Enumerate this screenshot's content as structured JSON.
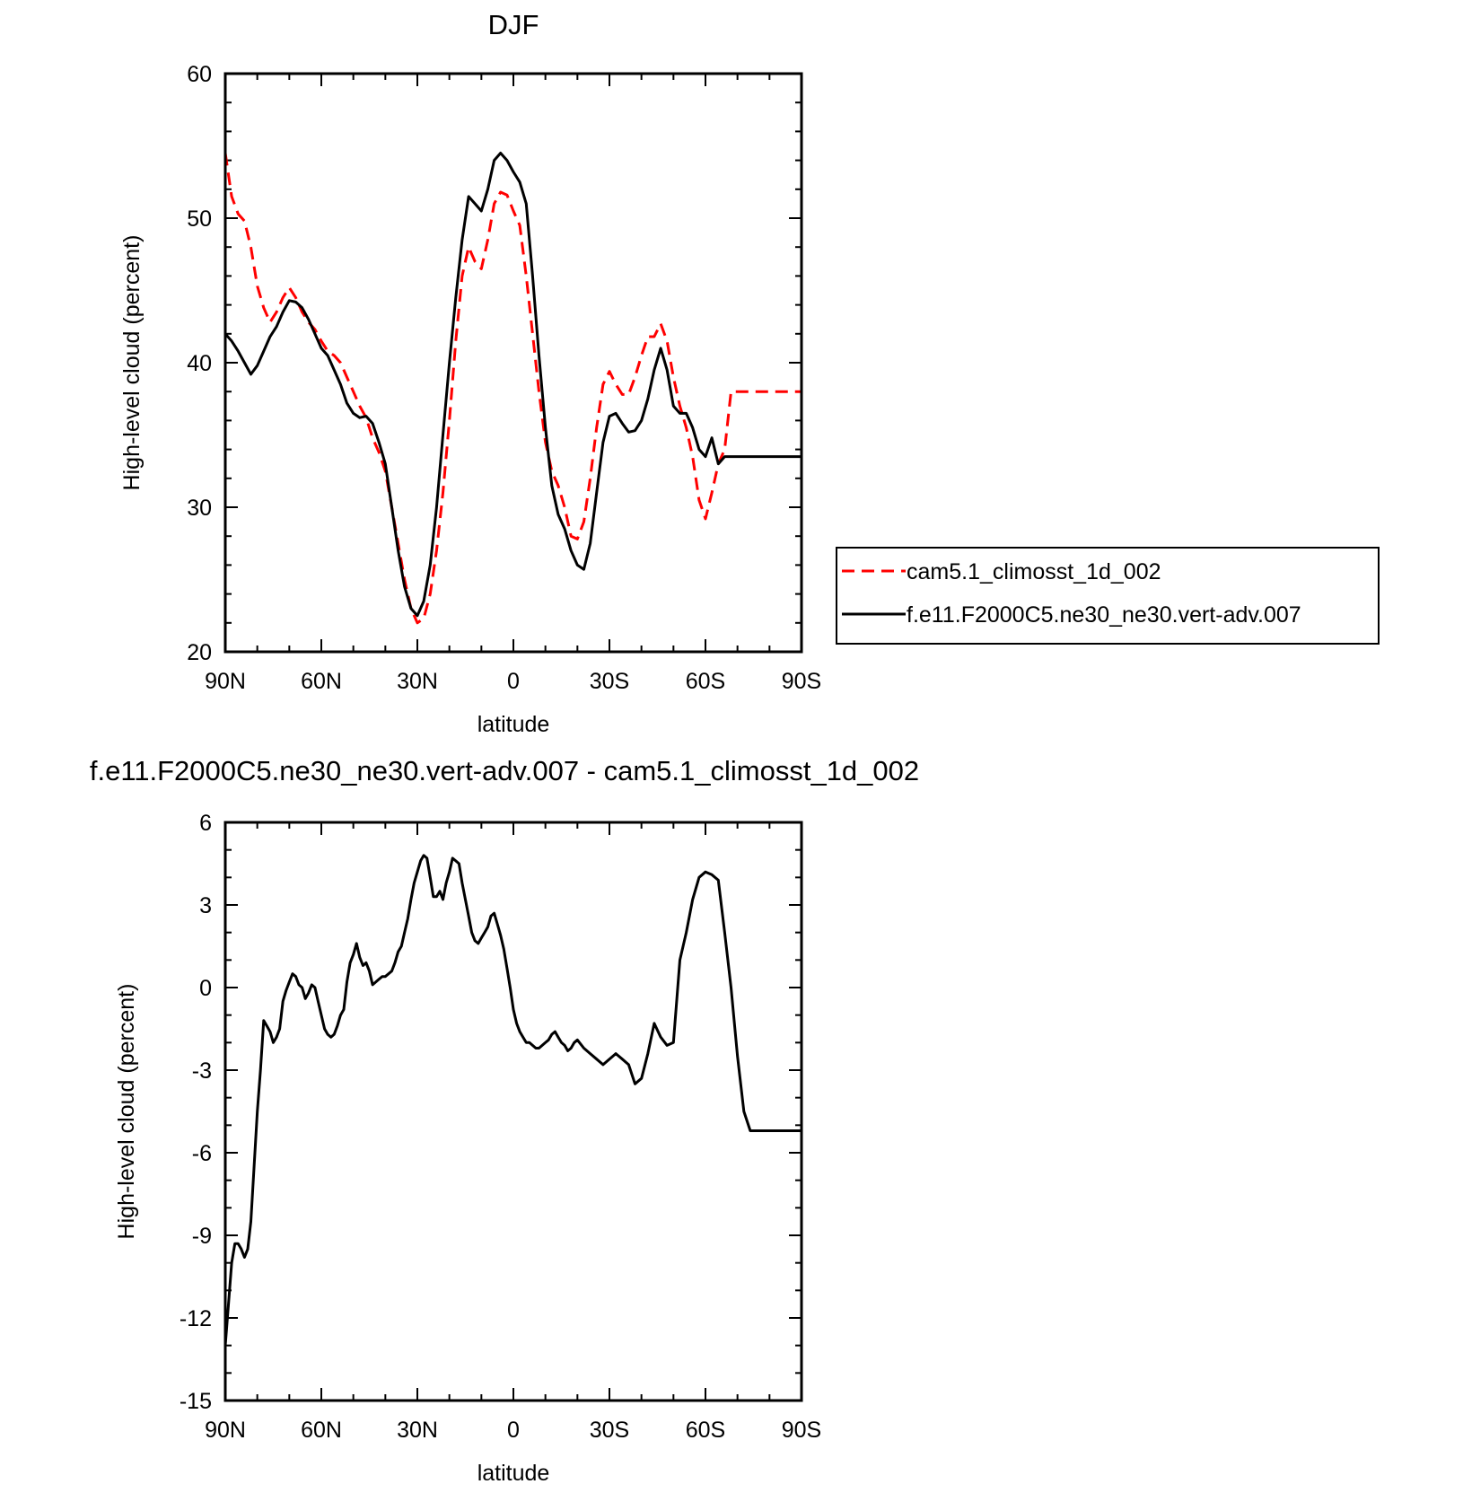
{
  "chart_data": [
    {
      "type": "line",
      "title": "DJF",
      "xlabel": "latitude",
      "ylabel": "High-level cloud (percent)",
      "xlim": [
        90,
        -90
      ],
      "ylim": [
        20,
        60
      ],
      "x_tick_values": [
        90,
        60,
        30,
        0,
        -30,
        -60,
        -90
      ],
      "x_tick_labels": [
        "90N",
        "60N",
        "30N",
        "0",
        "30S",
        "60S",
        "90S"
      ],
      "y_tick_values": [
        20,
        30,
        40,
        50,
        60
      ],
      "y_tick_labels": [
        "20",
        "30",
        "40",
        "50",
        "60"
      ],
      "legend_position": "right",
      "series": [
        {
          "name": "cam5.1_climosst_1d_002",
          "color": "#ff0000",
          "dash": "dashed",
          "x": [
            90,
            88,
            86,
            84,
            82,
            80,
            78,
            76,
            74,
            72,
            70,
            68,
            66,
            64,
            62,
            60,
            58,
            56,
            54,
            52,
            50,
            48,
            46,
            44,
            42,
            40,
            38,
            36,
            34,
            32,
            30,
            28,
            26,
            24,
            22,
            20,
            18,
            16,
            14,
            12,
            10,
            8,
            6,
            4,
            2,
            0,
            -2,
            -4,
            -6,
            -8,
            -10,
            -12,
            -14,
            -16,
            -18,
            -20,
            -22,
            -24,
            -26,
            -28,
            -30,
            -32,
            -34,
            -36,
            -38,
            -40,
            -42,
            -44,
            -46,
            -48,
            -50,
            -52,
            -54,
            -56,
            -58,
            -60,
            -62,
            -64,
            -66,
            -68,
            -70,
            -72,
            -74,
            -76,
            -78,
            -80,
            -82,
            -84,
            -86,
            -88,
            -90
          ],
          "values": [
            54.5,
            51.5,
            50.3,
            49.8,
            48.0,
            45.3,
            43.8,
            42.8,
            43.5,
            44.5,
            45.2,
            44.5,
            43.5,
            42.8,
            42.3,
            41.5,
            40.8,
            40.5,
            40.0,
            39.0,
            38.0,
            37.0,
            36.2,
            34.8,
            33.8,
            32.5,
            30.0,
            27.5,
            25.0,
            23.0,
            22.0,
            22.3,
            24.0,
            27.0,
            31.0,
            36.0,
            41.5,
            46.0,
            48.0,
            47.0,
            46.5,
            48.5,
            51.0,
            51.8,
            51.6,
            50.5,
            49.5,
            46.0,
            42.0,
            38.0,
            34.5,
            32.5,
            31.5,
            30.0,
            28.0,
            27.8,
            29.0,
            32.0,
            35.5,
            38.5,
            39.4,
            38.5,
            37.8,
            37.8,
            39.0,
            40.5,
            41.8,
            41.8,
            42.7,
            41.5,
            39.0,
            37.0,
            35.5,
            33.5,
            30.5,
            29.2,
            31.0,
            33.0,
            34.0,
            38.0,
            38.0,
            38.0,
            38.0,
            38.0,
            38.0,
            38.0,
            38.0,
            38.0,
            38.0,
            38.0,
            38.0
          ]
        },
        {
          "name": "f.e11.F2000C5.ne30_ne30.vert-adv.007",
          "color": "#000000",
          "dash": "solid",
          "x": [
            90,
            88,
            86,
            84,
            82,
            80,
            78,
            76,
            74,
            72,
            70,
            68,
            66,
            64,
            62,
            60,
            58,
            56,
            54,
            52,
            50,
            48,
            46,
            44,
            42,
            40,
            38,
            36,
            34,
            32,
            30,
            28,
            26,
            24,
            22,
            20,
            18,
            16,
            14,
            12,
            10,
            8,
            6,
            4,
            2,
            0,
            -2,
            -4,
            -6,
            -8,
            -10,
            -12,
            -14,
            -16,
            -18,
            -20,
            -22,
            -24,
            -26,
            -28,
            -30,
            -32,
            -34,
            -36,
            -38,
            -40,
            -42,
            -44,
            -46,
            -48,
            -50,
            -52,
            -54,
            -56,
            -58,
            -60,
            -62,
            -64,
            -66,
            -68,
            -70,
            -72,
            -74,
            -76,
            -78,
            -80,
            -82,
            -84,
            -86,
            -88,
            -90
          ],
          "values": [
            42.0,
            41.5,
            40.8,
            40.0,
            39.2,
            39.8,
            40.8,
            41.8,
            42.5,
            43.5,
            44.3,
            44.2,
            43.8,
            43.0,
            42.0,
            41.0,
            40.5,
            39.5,
            38.5,
            37.2,
            36.5,
            36.2,
            36.3,
            35.8,
            34.5,
            33.0,
            30.0,
            27.0,
            24.5,
            23.0,
            22.5,
            23.5,
            26.0,
            30.0,
            35.0,
            40.0,
            44.5,
            48.5,
            51.5,
            51.0,
            50.5,
            52.0,
            54.0,
            54.5,
            54.0,
            53.2,
            52.5,
            51.0,
            46.0,
            40.5,
            35.5,
            31.5,
            29.5,
            28.5,
            27.0,
            26.0,
            25.7,
            27.5,
            31.0,
            34.5,
            36.3,
            36.5,
            35.8,
            35.2,
            35.3,
            36.0,
            37.5,
            39.5,
            41.0,
            39.5,
            37.0,
            36.5,
            36.5,
            35.5,
            34.0,
            33.5,
            34.8,
            33.0,
            33.5,
            33.5,
            33.5,
            33.5,
            33.5,
            33.5,
            33.5,
            33.5,
            33.5,
            33.5,
            33.5,
            33.5,
            33.5
          ]
        }
      ]
    },
    {
      "type": "line",
      "title": "f.e11.F2000C5.ne30_ne30.vert-adv.007 - cam5.1_climosst_1d_002",
      "xlabel": "latitude",
      "ylabel": "High-level cloud (percent)",
      "xlim": [
        90,
        -90
      ],
      "ylim": [
        -15,
        6
      ],
      "x_tick_values": [
        90,
        60,
        30,
        0,
        -30,
        -60,
        -90
      ],
      "x_tick_labels": [
        "90N",
        "60N",
        "30N",
        "0",
        "30S",
        "60S",
        "90S"
      ],
      "y_tick_values": [
        -15,
        -12,
        -9,
        -6,
        -3,
        0,
        3,
        6
      ],
      "y_tick_labels": [
        "-15",
        "-12",
        "-9",
        "-6",
        "-3",
        "0",
        "3",
        "6"
      ],
      "series": [
        {
          "color": "#000000",
          "dash": "solid",
          "x": [
            90,
            88,
            87,
            86,
            85,
            84,
            83,
            82,
            81,
            80,
            79,
            78,
            77,
            76,
            75,
            74,
            73,
            72,
            71,
            70,
            69,
            68,
            67,
            66,
            65,
            64,
            63,
            62,
            61,
            60,
            59,
            58,
            57,
            56,
            55,
            54,
            53,
            52,
            51,
            50,
            49,
            48,
            47,
            46,
            45,
            44,
            43,
            42,
            41,
            40,
            39,
            38,
            37,
            36,
            35,
            34,
            33,
            32,
            31,
            30,
            29,
            28,
            27,
            26,
            25,
            24,
            23,
            22,
            21,
            20,
            19,
            18,
            17,
            16,
            15,
            14,
            13,
            12,
            11,
            10,
            9,
            8,
            7,
            6,
            5,
            4,
            3,
            2,
            1,
            0,
            -1,
            -2,
            -3,
            -4,
            -5,
            -6,
            -7,
            -8,
            -9,
            -10,
            -11,
            -12,
            -13,
            -14,
            -15,
            -16,
            -17,
            -18,
            -19,
            -20,
            -22,
            -24,
            -26,
            -28,
            -30,
            -32,
            -34,
            -36,
            -38,
            -40,
            -42,
            -44,
            -46,
            -48,
            -50,
            -52,
            -54,
            -56,
            -58,
            -60,
            -62,
            -64,
            -66,
            -68,
            -70,
            -72,
            -74,
            -76,
            -78,
            -80,
            -82,
            -84,
            -86,
            -88,
            -89,
            -90
          ],
          "values": [
            -13.0,
            -10.0,
            -9.3,
            -9.3,
            -9.5,
            -9.8,
            -9.5,
            -8.5,
            -6.5,
            -4.5,
            -3.0,
            -1.2,
            -1.4,
            -1.6,
            -2.0,
            -1.8,
            -1.5,
            -0.5,
            -0.1,
            0.2,
            0.5,
            0.4,
            0.1,
            0.0,
            -0.4,
            -0.2,
            0.1,
            0.0,
            -0.5,
            -1.0,
            -1.5,
            -1.7,
            -1.8,
            -1.7,
            -1.4,
            -1.0,
            -0.8,
            0.2,
            0.9,
            1.2,
            1.6,
            1.1,
            0.8,
            0.9,
            0.6,
            0.1,
            0.2,
            0.3,
            0.4,
            0.4,
            0.5,
            0.6,
            0.9,
            1.3,
            1.5,
            2.0,
            2.5,
            3.2,
            3.8,
            4.2,
            4.6,
            4.8,
            4.7,
            4.0,
            3.3,
            3.3,
            3.5,
            3.2,
            3.8,
            4.2,
            4.7,
            4.6,
            4.5,
            3.8,
            3.2,
            2.6,
            2.0,
            1.7,
            1.6,
            1.8,
            2.0,
            2.2,
            2.6,
            2.7,
            2.3,
            1.9,
            1.4,
            0.7,
            0.0,
            -0.8,
            -1.3,
            -1.6,
            -1.8,
            -2.0,
            -2.0,
            -2.1,
            -2.2,
            -2.2,
            -2.1,
            -2.0,
            -1.9,
            -1.7,
            -1.6,
            -1.8,
            -2.0,
            -2.1,
            -2.3,
            -2.2,
            -2.0,
            -1.9,
            -2.2,
            -2.4,
            -2.6,
            -2.8,
            -2.6,
            -2.4,
            -2.6,
            -2.8,
            -3.5,
            -3.3,
            -2.4,
            -1.3,
            -1.8,
            -2.1,
            -2.0,
            1.0,
            2.0,
            3.2,
            4.0,
            4.2,
            4.1,
            3.9,
            2.0,
            0.0,
            -2.5,
            -4.5,
            -5.2,
            -5.2,
            -5.2,
            -5.2,
            -5.2,
            -5.2,
            -5.2,
            -5.2,
            -5.2,
            -5.2
          ]
        }
      ]
    }
  ]
}
